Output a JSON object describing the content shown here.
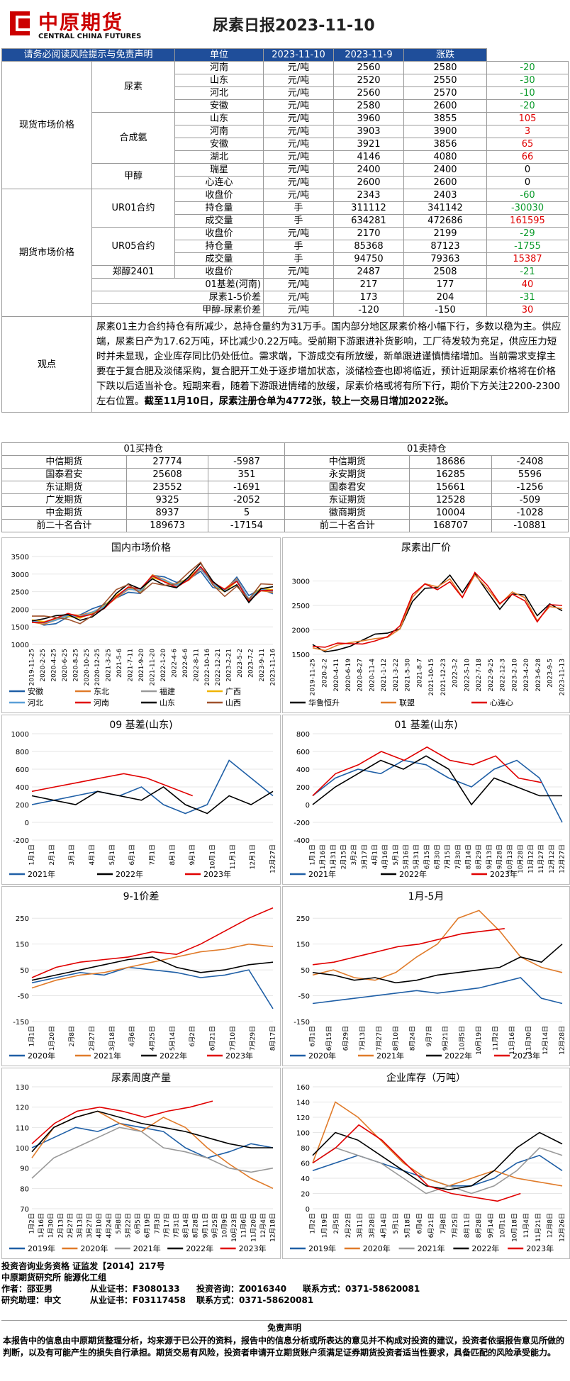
{
  "header": {
    "logo_cn": "中原期货",
    "logo_en": "CENTRAL CHINA FUTURES",
    "title": "尿素日报2023-11-10"
  },
  "table_head": {
    "notice": "请务必阅读风险提示与免责声明",
    "unit": "单位",
    "d1": "2023-11-10",
    "d2": "2023-11-9",
    "chg": "涨跌"
  },
  "spot": {
    "group": "现货市场价格",
    "urea": {
      "name": "尿素",
      "rows": [
        {
          "loc": "河南",
          "unit": "元/吨",
          "v1": "2560",
          "v2": "2580",
          "chg": "-20"
        },
        {
          "loc": "山东",
          "unit": "元/吨",
          "v1": "2520",
          "v2": "2550",
          "chg": "-30"
        },
        {
          "loc": "河北",
          "unit": "元/吨",
          "v1": "2560",
          "v2": "2570",
          "chg": "-10"
        },
        {
          "loc": "安徽",
          "unit": "元/吨",
          "v1": "2580",
          "v2": "2600",
          "chg": "-20"
        }
      ]
    },
    "ammonia": {
      "name": "合成氨",
      "rows": [
        {
          "loc": "山东",
          "unit": "元/吨",
          "v1": "3960",
          "v2": "3855",
          "chg": "105"
        },
        {
          "loc": "河南",
          "unit": "元/吨",
          "v1": "3903",
          "v2": "3900",
          "chg": "3"
        },
        {
          "loc": "安徽",
          "unit": "元/吨",
          "v1": "3921",
          "v2": "3856",
          "chg": "65"
        },
        {
          "loc": "湖北",
          "unit": "元/吨",
          "v1": "4146",
          "v2": "4080",
          "chg": "66"
        }
      ]
    },
    "methanol": {
      "name": "甲醇",
      "rows": [
        {
          "loc": "瑞星",
          "unit": "元/吨",
          "v1": "2400",
          "v2": "2400",
          "chg": "0"
        },
        {
          "loc": "心连心",
          "unit": "元/吨",
          "v1": "2600",
          "v2": "2600",
          "chg": "0"
        }
      ]
    }
  },
  "futures": {
    "group": "期货市场价格",
    "ur01": {
      "name": "UR01合约",
      "rows": [
        {
          "item": "收盘价",
          "unit": "元/吨",
          "v1": "2343",
          "v2": "2403",
          "chg": "-60"
        },
        {
          "item": "持仓量",
          "unit": "手",
          "v1": "311112",
          "v2": "341142",
          "chg": "-30030"
        },
        {
          "item": "成交量",
          "unit": "手",
          "v1": "634281",
          "v2": "472686",
          "chg": "161595"
        }
      ]
    },
    "ur05": {
      "name": "UR05合约",
      "rows": [
        {
          "item": "收盘价",
          "unit": "元/吨",
          "v1": "2170",
          "v2": "2199",
          "chg": "-29"
        },
        {
          "item": "持仓量",
          "unit": "手",
          "v1": "85368",
          "v2": "87123",
          "chg": "-1755"
        },
        {
          "item": "成交量",
          "unit": "手",
          "v1": "94750",
          "v2": "79363",
          "chg": "15387"
        }
      ]
    },
    "ma": {
      "name": "郑醇2401",
      "item": "收盘价",
      "unit": "元/吨",
      "v1": "2487",
      "v2": "2508",
      "chg": "-21"
    },
    "basis": {
      "item": "01基差(河南)",
      "unit": "元/吨",
      "v1": "217",
      "v2": "177",
      "chg": "40"
    },
    "spread": {
      "item": "尿素1-5价差",
      "unit": "元/吨",
      "v1": "173",
      "v2": "204",
      "chg": "-31"
    },
    "ma_ur": {
      "item": "甲醇-尿素价差",
      "unit": "元/吨",
      "v1": "-120",
      "v2": "-150",
      "chg": "30"
    }
  },
  "view": {
    "label": "观点",
    "text": "尿素01主力合约持仓有所减少，总持仓量约为31万手。国内部分地区尿素价格小幅下行，多数以稳为主。供应端，尿素日产为17.62万吨，环比减少0.22万吨。受前期下游跟进补货影响，工厂待发较为充足，供应压力短时并未显现，企业库存同比仍处低位。需求端，下游成交有所放缓，新单跟进谨慎情绪增加。当前需求支撑主要在于复合肥及淡储采购，复合肥开工处于逐步增加状态，淡储检查也即将临近，预计近期尿素价格将在价格下跌以后适当补仓。短期来看，随着下游跟进情绪的放缓，尿素价格或将有所下行，期价下方关注2200-2300左右位置。",
    "bold": "截至11月10日，尿素注册仓单为4772张，较上一交易日增加2022张。"
  },
  "positions": {
    "long_title": "01买持仓",
    "short_title": "01卖持仓",
    "long": [
      [
        "中信期货",
        "27774",
        "-5987"
      ],
      [
        "国泰君安",
        "25608",
        "351"
      ],
      [
        "东证期货",
        "23552",
        "-1691"
      ],
      [
        "广发期货",
        "9325",
        "-2052"
      ],
      [
        "中金期货",
        "8937",
        "5"
      ],
      [
        "前二十名合计",
        "189673",
        "-17154"
      ]
    ],
    "short": [
      [
        "中信期货",
        "18686",
        "-2408"
      ],
      [
        "永安期货",
        "16285",
        "5596"
      ],
      [
        "国泰君安",
        "15661",
        "-1256"
      ],
      [
        "东证期货",
        "12528",
        "-509"
      ],
      [
        "徽商期货",
        "10004",
        "-1028"
      ],
      [
        "前二十名合计",
        "168707",
        "-10881"
      ]
    ]
  },
  "chart_data": [
    {
      "type": "line",
      "title": "国内市场价格",
      "ylim": [
        1000,
        3500
      ],
      "yticks": [
        "3500",
        "3000",
        "2500",
        "2000",
        "1500",
        "1000"
      ],
      "xticks": [
        "2019-11-25",
        "2020-2-25",
        "2020-4-25",
        "2020-6-25",
        "2020-8-25",
        "2020-10-25",
        "2020-12-25",
        "2021-3-25",
        "2021-5-6",
        "2021-7-11",
        "2021-9-20",
        "2021-11-20",
        "2022-1-20",
        "2022-4-6",
        "2022-6-6",
        "2022-8-11",
        "2022-10-16",
        "2022-12-21",
        "2023-2-21",
        "2023-5-2",
        "2023-7-2",
        "2023-9-11",
        "2023-11-16"
      ],
      "series": [
        {
          "name": "安徽",
          "color": "#1f5fa6"
        },
        {
          "name": "东北",
          "color": "#e07b2a"
        },
        {
          "name": "福建",
          "color": "#999999"
        },
        {
          "name": "广西",
          "color": "#f0b400"
        },
        {
          "name": "河北",
          "color": "#5aa0d8"
        },
        {
          "name": "河南",
          "color": "#e00000"
        },
        {
          "name": "山东",
          "color": "#000000"
        },
        {
          "name": "山西",
          "color": "#a0522d"
        }
      ],
      "x": [
        0,
        5,
        10,
        15,
        20,
        25,
        30,
        35,
        40,
        45,
        50,
        55,
        60,
        65,
        70,
        75,
        80,
        85,
        90,
        95,
        100
      ],
      "values": [
        1700,
        1650,
        1700,
        1800,
        1750,
        1900,
        2100,
        2400,
        2600,
        2500,
        2900,
        2800,
        2700,
        2900,
        3200,
        2700,
        2500,
        2800,
        2300,
        2600,
        2550
      ]
    },
    {
      "type": "line",
      "title": "尿素出厂价",
      "ylim": [
        1500,
        3500
      ],
      "yticks": [
        "3000",
        "2500",
        "2000",
        "1500"
      ],
      "xticks": [
        "2019-11-25",
        "2020-2-2",
        "2020-4-11",
        "2020-6-19",
        "2020-8-27",
        "2020-11-4",
        "2021-1-12",
        "2021-3-22",
        "2021-5-30",
        "2021-8-7",
        "2021-10-15",
        "2021-12-23",
        "2022-3-2",
        "2022-5-10",
        "2022-7-18",
        "2022-9-25",
        "2022-12-3",
        "2023-2-10",
        "2023-4-20",
        "2023-6-28",
        "2023-9-5",
        "2023-11-13"
      ],
      "series": [
        {
          "name": "华鲁恒升",
          "color": "#000000"
        },
        {
          "name": "联盟",
          "color": "#e07b2a"
        },
        {
          "name": "心连心",
          "color": "#e00000"
        }
      ],
      "x": [
        0,
        5,
        10,
        15,
        20,
        25,
        30,
        35,
        40,
        45,
        50,
        55,
        60,
        65,
        70,
        75,
        80,
        85,
        90,
        95,
        100
      ],
      "values": [
        1700,
        1650,
        1700,
        1680,
        1700,
        1800,
        1900,
        2100,
        2700,
        2900,
        2800,
        3000,
        2700,
        3200,
        2900,
        2500,
        2700,
        2600,
        2200,
        2550,
        2500
      ]
    },
    {
      "type": "line",
      "title": "09 基差(山东)",
      "ylim": [
        -200,
        1000
      ],
      "yticks": [
        "1000",
        "800",
        "600",
        "400",
        "200",
        "0",
        "-200"
      ],
      "xticks": [
        "1月1日",
        "2月1日",
        "3月1日",
        "4月1日",
        "5月1日",
        "6月1日",
        "7月1日",
        "8月1日",
        "9月1日",
        "10月1日",
        "11月1日",
        "12月1日",
        "12月27日"
      ],
      "series": [
        {
          "name": "2021年",
          "color": "#1f5fa6",
          "values": [
            200,
            250,
            300,
            350,
            300,
            400,
            200,
            100,
            200,
            700,
            500,
            300
          ]
        },
        {
          "name": "2022年",
          "color": "#000000",
          "values": [
            300,
            250,
            200,
            350,
            300,
            250,
            400,
            200,
            100,
            300,
            200,
            350
          ]
        },
        {
          "name": "2023年",
          "color": "#e00000",
          "values": [
            350,
            400,
            450,
            500,
            550,
            500,
            400,
            300
          ]
        }
      ]
    },
    {
      "type": "line",
      "title": "01 基差(山东)",
      "ylim": [
        -400,
        800
      ],
      "yticks": [
        "800",
        "600",
        "400",
        "200",
        "0",
        "-200",
        "-400"
      ],
      "xticks": [
        "1月1日",
        "1月16日",
        "1月31日",
        "2月15日",
        "3月2日",
        "3月17日",
        "4月1日",
        "4月16日",
        "5月1日",
        "5月16日",
        "5月31日",
        "6月15日",
        "6月30日",
        "7月15日",
        "7月30日",
        "8月14日",
        "8月29日",
        "9月13日",
        "9月28日",
        "10月13日",
        "10月28日",
        "11月12日",
        "11月27日",
        "12月12日",
        "12月27日"
      ],
      "series": [
        {
          "name": "2021年",
          "color": "#1f5fa6",
          "values": [
            100,
            300,
            400,
            350,
            500,
            450,
            300,
            200,
            400,
            500,
            300,
            -200
          ]
        },
        {
          "name": "2022年",
          "color": "#000000",
          "values": [
            0,
            200,
            350,
            500,
            400,
            550,
            400,
            0,
            300,
            200,
            100,
            100
          ]
        },
        {
          "name": "2023年",
          "color": "#e00000",
          "values": [
            100,
            350,
            450,
            600,
            500,
            650,
            500,
            450,
            550,
            300,
            250
          ]
        }
      ]
    },
    {
      "type": "line",
      "title": "9-1价差",
      "ylim": [
        -150,
        300
      ],
      "yticks": [
        "250",
        "150",
        "50",
        "-50",
        "-150"
      ],
      "xticks": [
        "1月1日",
        "1月20日",
        "2月8日",
        "2月27日",
        "3月18日",
        "4月6日",
        "4月25日",
        "5月14日",
        "6月2日",
        "6月21日",
        "7月10日",
        "7月29日",
        "8月17日"
      ],
      "series": [
        {
          "name": "2020年",
          "color": "#1f5fa6",
          "values": [
            0,
            20,
            40,
            30,
            60,
            50,
            40,
            20,
            30,
            50,
            -100
          ]
        },
        {
          "name": "2021年",
          "color": "#e07b2a",
          "values": [
            -20,
            10,
            30,
            40,
            60,
            80,
            100,
            120,
            130,
            150,
            140
          ]
        },
        {
          "name": "2022年",
          "color": "#000000",
          "values": [
            10,
            30,
            50,
            70,
            90,
            100,
            60,
            40,
            50,
            70,
            80
          ]
        },
        {
          "name": "2023年",
          "color": "#e00000",
          "values": [
            20,
            60,
            80,
            90,
            100,
            120,
            110,
            150,
            200,
            250,
            290
          ]
        }
      ]
    },
    {
      "type": "line",
      "title": "1月-5月",
      "ylim": [
        -150,
        300
      ],
      "yticks": [
        "250",
        "150",
        "50",
        "-50",
        "-150"
      ],
      "xticks": [
        "6月1日",
        "6月15日",
        "6月29日",
        "7月13日",
        "7月27日",
        "8月10日",
        "8月24日",
        "9月7日",
        "9月21日",
        "10月5日",
        "10月19日",
        "11月2日",
        "11月16日",
        "11月30日",
        "12月14日",
        "12月28日"
      ],
      "series": [
        {
          "name": "2020年",
          "color": "#1f5fa6",
          "values": [
            -80,
            -70,
            -60,
            -50,
            -40,
            -30,
            -40,
            -30,
            -20,
            0,
            20,
            -60,
            -80
          ]
        },
        {
          "name": "2021年",
          "color": "#e07b2a",
          "values": [
            30,
            50,
            20,
            10,
            40,
            100,
            150,
            250,
            280,
            200,
            100,
            60,
            40
          ]
        },
        {
          "name": "2022年",
          "color": "#000000",
          "values": [
            40,
            30,
            10,
            20,
            0,
            10,
            30,
            40,
            50,
            60,
            100,
            80,
            150
          ]
        },
        {
          "name": "2023年",
          "color": "#e00000",
          "values": [
            70,
            80,
            100,
            120,
            140,
            150,
            170,
            190,
            200,
            210
          ]
        }
      ]
    },
    {
      "type": "line",
      "title": "尿素周度产量",
      "ylim": [
        70,
        130
      ],
      "yticks": [
        "130",
        "120",
        "110",
        "100",
        "90",
        "80",
        "70"
      ],
      "xticks": [
        "1月2日",
        "1月16日",
        "1月30日",
        "2月13日",
        "2月27日",
        "3月13日",
        "3月27日",
        "4月10日",
        "4月24日",
        "5月8日",
        "5月22日",
        "6月5日",
        "6月19日",
        "7月3日",
        "7月17日",
        "7月31日",
        "8月14日",
        "8月28日",
        "9月11日",
        "9月25日",
        "10月9日",
        "10月23日",
        "11月6日",
        "11月20日",
        "12月4日",
        "12月18日"
      ],
      "series": [
        {
          "name": "2019年",
          "color": "#1f5fa6",
          "values": [
            100,
            105,
            110,
            108,
            112,
            110,
            108,
            100,
            95,
            98,
            102,
            100
          ]
        },
        {
          "name": "2020年",
          "color": "#e07b2a",
          "values": [
            95,
            110,
            115,
            118,
            112,
            108,
            115,
            110,
            100,
            92,
            85,
            80
          ]
        },
        {
          "name": "2021年",
          "color": "#999999",
          "values": [
            85,
            95,
            100,
            105,
            110,
            108,
            100,
            98,
            95,
            90,
            88,
            90
          ]
        },
        {
          "name": "2022年",
          "color": "#000000",
          "values": [
            98,
            110,
            115,
            118,
            115,
            112,
            110,
            108,
            105,
            102,
            100,
            100
          ]
        },
        {
          "name": "2023年",
          "color": "#e00000",
          "values": [
            102,
            112,
            118,
            120,
            118,
            115,
            118,
            120,
            123
          ]
        }
      ]
    },
    {
      "type": "line",
      "title": "企业库存（万吨）",
      "ylim": [
        0,
        160
      ],
      "yticks": [
        "160",
        "140",
        "120",
        "100",
        "80",
        "60",
        "40",
        "20",
        "0"
      ],
      "xticks": [
        "1月2日",
        "1月19日",
        "2月5日",
        "2月22日",
        "3月11日",
        "3月28日",
        "4月14日",
        "5月1日",
        "5月18日",
        "6月4日",
        "6月21日",
        "7月8日",
        "7月25日",
        "8月11日",
        "8月28日",
        "9月14日",
        "10月1日",
        "10月18日",
        "11月4日",
        "11月21日",
        "12月8日",
        "12月26日"
      ],
      "series": [
        {
          "name": "2019年",
          "color": "#1f5fa6",
          "values": [
            50,
            60,
            70,
            60,
            50,
            40,
            30,
            30,
            40,
            60,
            70,
            50
          ]
        },
        {
          "name": "2020年",
          "color": "#e07b2a",
          "values": [
            60,
            140,
            120,
            90,
            60,
            40,
            30,
            40,
            50,
            40,
            35,
            30
          ]
        },
        {
          "name": "2021年",
          "color": "#999999",
          "values": [
            60,
            80,
            70,
            60,
            40,
            20,
            30,
            20,
            30,
            50,
            80,
            70
          ]
        },
        {
          "name": "2022年",
          "color": "#000000",
          "values": [
            70,
            100,
            90,
            70,
            50,
            30,
            25,
            30,
            50,
            80,
            100,
            85
          ]
        },
        {
          "name": "2023年",
          "color": "#e00000",
          "values": [
            60,
            80,
            110,
            90,
            60,
            30,
            20,
            15,
            10,
            20
          ]
        }
      ]
    }
  ],
  "footer": {
    "l1": "投资咨询业务资格    证监发【2014】217号",
    "l2": "中原期货研究所    能源化工组",
    "l3a": "作者：邵亚男",
    "l3b": "从业证书：F3080133",
    "l3c": "投资咨询：Z0016340",
    "l3d": "联系方式：0371-58620081",
    "l4a": "研究助理：申文",
    "l4b": "从业证书：F03117458",
    "l4c": "联系方式：0371-58620081",
    "disc_title": "免责声明",
    "disc_text": "本报告中的信息由中原期货整理分析，均来源于已公开的资料，报告中的信息分析或所表达的意见并不构成对投资的建议，投资者依据报告意见所做的判断，以及有可能产生的损失自行承担。期货交易有风险，投资者申请开立期货账户须满足证券期货投资者适当性要求，具备匹配的风险承受能力。"
  }
}
